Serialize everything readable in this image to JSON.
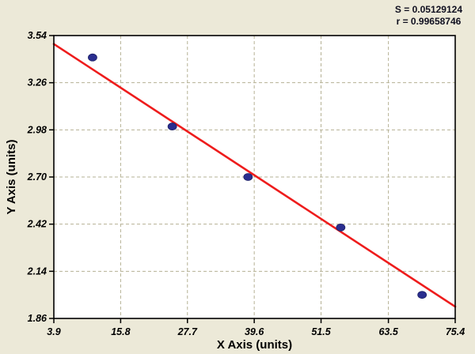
{
  "stats": {
    "s_label": "S = 0.05129124",
    "r_label": "r = 0.99658746"
  },
  "chart_data": {
    "type": "scatter",
    "title": "",
    "xlabel": "X Axis (units)",
    "ylabel": "Y Axis (units)",
    "x_tick_labels": [
      "3.9",
      "15.8",
      "27.7",
      "39.6",
      "51.5",
      "63.5",
      "75.4"
    ],
    "y_tick_labels": [
      "1.86",
      "2.14",
      "2.42",
      "2.70",
      "2.98",
      "3.26",
      "3.54"
    ],
    "xlim": [
      3.9,
      75.4
    ],
    "ylim": [
      1.86,
      3.54
    ],
    "grid": "dashed",
    "legend": "none",
    "points": [
      {
        "x": 10.8,
        "y": 3.41
      },
      {
        "x": 25.0,
        "y": 3.0
      },
      {
        "x": 38.5,
        "y": 2.7
      },
      {
        "x": 55.0,
        "y": 2.4
      },
      {
        "x": 69.5,
        "y": 2.0
      }
    ],
    "regression_line": {
      "x1": 3.9,
      "y1": 3.49,
      "x2": 75.4,
      "y2": 1.93
    },
    "colors": {
      "page_bg": "#ece9d8",
      "plot_bg": "#ffffff",
      "grid": "#b5b194",
      "axis": "#000000",
      "point": "#2a2e8f",
      "line": "#ee1c1c",
      "stats_text": "#101020"
    }
  }
}
